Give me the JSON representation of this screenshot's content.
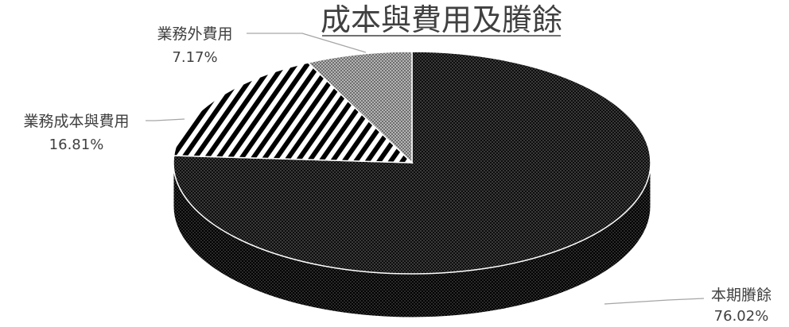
{
  "chart_data": {
    "type": "pie",
    "title": "成本與費用及賸餘",
    "slices": [
      {
        "label": "本期賸餘",
        "value": 76.02,
        "display": "76.02%",
        "pattern": "dark-check"
      },
      {
        "label": "業務成本與費用",
        "value": 16.81,
        "display": "16.81%",
        "pattern": "diagonal-stripes"
      },
      {
        "label": "業務外費用",
        "value": 7.17,
        "display": "7.17%",
        "pattern": "light-check"
      }
    ],
    "colors": {
      "text": "#404040",
      "leader": "#a6a6a6"
    }
  }
}
